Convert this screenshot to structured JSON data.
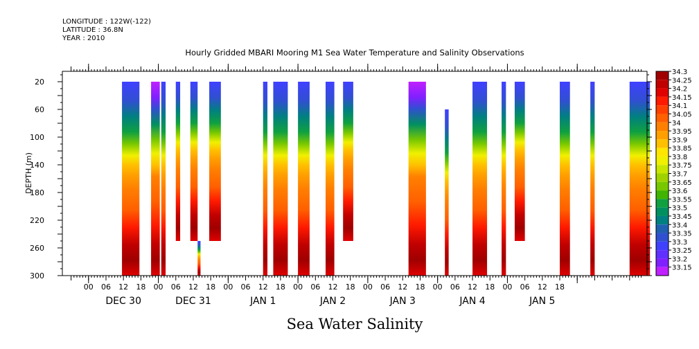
{
  "header": {
    "longitude": "LONGITUDE : 122W(-122)",
    "latitude": "LATITUDE : 36.8N",
    "year": "YEAR : 2010"
  },
  "chart_data": {
    "type": "heatmap",
    "title": "Hourly Gridded MBARI Mooring M1 Sea Water Temperature and Salinity Observations",
    "xlabel": "Sea Water Salinity",
    "ylabel": "DEPTH (m)",
    "y_ticks": [
      20,
      60,
      100,
      140,
      180,
      220,
      260,
      300
    ],
    "ylim": [
      300,
      0
    ],
    "x_hour_ticks": [
      "00",
      "06",
      "12",
      "18",
      "00",
      "06",
      "12",
      "18",
      "00",
      "06",
      "12",
      "18",
      "00",
      "06",
      "12",
      "18",
      "00",
      "06",
      "12",
      "18",
      "00",
      "06",
      "12",
      "18",
      "00",
      "06",
      "12",
      "18"
    ],
    "day_labels": [
      "DEC 30",
      "DEC 31",
      "JAN  1",
      "JAN  2",
      "JAN  3",
      "JAN  4",
      "JAN  5"
    ],
    "colorbar_levels": [
      "34.3",
      "34.25",
      "34.2",
      "34.15",
      "34.1",
      "34.05",
      "34",
      "33.95",
      "33.9",
      "33.85",
      "33.8",
      "33.75",
      "33.7",
      "33.65",
      "33.6",
      "33.55",
      "33.5",
      "33.45",
      "33.4",
      "33.35",
      "33.3",
      "33.25",
      "33.2",
      "33.15"
    ],
    "colorbar_colors": [
      "#a00000",
      "#c00000",
      "#e00000",
      "#ff1a00",
      "#ff4000",
      "#ff6000",
      "#ff8000",
      "#ffa000",
      "#ffc000",
      "#ffe600",
      "#f0f000",
      "#c8e600",
      "#a0d200",
      "#78c800",
      "#40b400",
      "#10a040",
      "#009060",
      "#008080",
      "#2060b0",
      "#3050d0",
      "#4040ff",
      "#6030ff",
      "#8020ff",
      "#c020ff"
    ],
    "intervals": [
      {
        "start_hour": 11.5,
        "end_hour": 17.5,
        "top": 20,
        "bottom": 300,
        "profile": "normal"
      },
      {
        "start_hour": 21.5,
        "end_hour": 24.5,
        "top": 20,
        "bottom": 300,
        "profile": "purpletop"
      },
      {
        "start_hour": 25.0,
        "end_hour": 26.5,
        "top": 20,
        "bottom": 300,
        "profile": "normal"
      },
      {
        "start_hour": 30.0,
        "end_hour": 31.5,
        "top": 20,
        "bottom": 250,
        "profile": "normal"
      },
      {
        "start_hour": 35.0,
        "end_hour": 37.5,
        "top": 20,
        "bottom": 250,
        "profile": "normal"
      },
      {
        "start_hour": 37.5,
        "end_hour": 38.5,
        "top": 250,
        "bottom": 300,
        "profile": "normal"
      },
      {
        "start_hour": 41.5,
        "end_hour": 45.5,
        "top": 20,
        "bottom": 250,
        "profile": "normal"
      },
      {
        "start_hour": 60.0,
        "end_hour": 61.5,
        "top": 20,
        "bottom": 300,
        "profile": "normal"
      },
      {
        "start_hour": 63.5,
        "end_hour": 68.5,
        "top": 20,
        "bottom": 300,
        "profile": "normal"
      },
      {
        "start_hour": 72.0,
        "end_hour": 76.0,
        "top": 20,
        "bottom": 300,
        "profile": "normal"
      },
      {
        "start_hour": 81.5,
        "end_hour": 84.5,
        "top": 20,
        "bottom": 300,
        "profile": "normal"
      },
      {
        "start_hour": 87.5,
        "end_hour": 91.0,
        "top": 20,
        "bottom": 250,
        "profile": "normal"
      },
      {
        "start_hour": 110.0,
        "end_hour": 116.0,
        "top": 20,
        "bottom": 300,
        "profile": "purpletop"
      },
      {
        "start_hour": 122.5,
        "end_hour": 123.8,
        "top": 60,
        "bottom": 300,
        "profile": "normal"
      },
      {
        "start_hour": 132.0,
        "end_hour": 137.0,
        "top": 20,
        "bottom": 300,
        "profile": "normal"
      },
      {
        "start_hour": 142.0,
        "end_hour": 143.5,
        "top": 20,
        "bottom": 300,
        "profile": "normal"
      },
      {
        "start_hour": 146.5,
        "end_hour": 150.0,
        "top": 20,
        "bottom": 250,
        "profile": "normal"
      },
      {
        "start_hour": 162.0,
        "end_hour": 165.5,
        "top": 20,
        "bottom": 300,
        "profile": "normal"
      },
      {
        "start_hour": 172.5,
        "end_hour": 174.0,
        "top": 20,
        "bottom": 300,
        "profile": "normal"
      },
      {
        "start_hour": 186.0,
        "end_hour": 193.0,
        "top": 20,
        "bottom": 300,
        "profile": "normal"
      }
    ]
  }
}
